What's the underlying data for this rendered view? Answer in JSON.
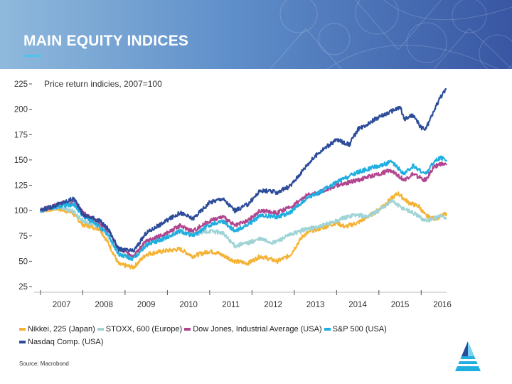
{
  "slide": {
    "title": "MAIN EQUITY INDICES",
    "source": "Source: Macrobond"
  },
  "colors": {
    "header_left": "#8fb9dc",
    "header_right": "#3856a3",
    "accent": "#4fc3e8"
  },
  "icons": {
    "logo": "stylized-triangle-logo-icon"
  },
  "chart_data": {
    "type": "line",
    "subtitle": "Price return indicies, 2007=100",
    "x_ticks": [
      "2007",
      "2008",
      "2009",
      "2010",
      "2011",
      "2012",
      "2013",
      "2014",
      "2015",
      "2016"
    ],
    "y_ticks": [
      25,
      50,
      75,
      100,
      125,
      150,
      175,
      200,
      225
    ],
    "ylim": [
      25,
      225
    ],
    "xlim": [
      2006.85,
      2016.6
    ],
    "grid": false,
    "legend_position": "bottom",
    "series": [
      {
        "name": "Nikkei, 225 (Japan)",
        "color": "#f5b335",
        "x": [
          2007.0,
          2007.4,
          2007.75,
          2008.0,
          2008.4,
          2008.6,
          2008.85,
          2009.2,
          2009.5,
          2009.9,
          2010.3,
          2010.6,
          2011.0,
          2011.2,
          2011.6,
          2011.9,
          2012.2,
          2012.6,
          2012.9,
          2013.2,
          2013.4,
          2013.6,
          2014.0,
          2014.2,
          2014.5,
          2014.9,
          2015.3,
          2015.45,
          2015.7,
          2015.95,
          2016.1,
          2016.3,
          2016.45,
          2016.6
        ],
        "y": [
          100,
          102,
          98,
          86,
          82,
          68,
          47,
          44,
          57,
          60,
          62,
          55,
          60,
          58,
          50,
          48,
          55,
          50,
          56,
          75,
          80,
          82,
          88,
          84,
          88,
          98,
          112,
          117,
          108,
          104,
          95,
          92,
          94,
          97
        ]
      },
      {
        "name": "STOXX, 600 (Europe)",
        "color": "#9fd3d6",
        "x": [
          2007.0,
          2007.4,
          2007.75,
          2008.0,
          2008.4,
          2008.6,
          2008.85,
          2009.2,
          2009.5,
          2009.9,
          2010.3,
          2010.6,
          2011.0,
          2011.3,
          2011.6,
          2011.9,
          2012.2,
          2012.5,
          2012.9,
          2013.3,
          2013.6,
          2014.0,
          2014.4,
          2014.7,
          2015.0,
          2015.3,
          2015.5,
          2015.8,
          2016.1,
          2016.3,
          2016.45,
          2016.6
        ],
        "y": [
          100,
          104,
          100,
          90,
          84,
          74,
          57,
          54,
          68,
          72,
          80,
          76,
          80,
          78,
          65,
          68,
          72,
          68,
          76,
          82,
          84,
          90,
          96,
          94,
          100,
          110,
          104,
          98,
          90,
          92,
          95,
          93
        ]
      },
      {
        "name": "Dow Jones, Industrial Average (USA)",
        "color": "#b2458f",
        "x": [
          2007.0,
          2007.4,
          2007.8,
          2008.0,
          2008.4,
          2008.6,
          2008.85,
          2009.2,
          2009.5,
          2009.9,
          2010.3,
          2010.6,
          2011.0,
          2011.3,
          2011.6,
          2011.9,
          2012.2,
          2012.6,
          2012.9,
          2013.3,
          2013.6,
          2014.0,
          2014.5,
          2014.9,
          2015.3,
          2015.6,
          2015.8,
          2016.1,
          2016.3,
          2016.45,
          2016.6
        ],
        "y": [
          100,
          106,
          109,
          98,
          88,
          80,
          62,
          55,
          70,
          76,
          85,
          80,
          90,
          94,
          85,
          90,
          100,
          98,
          103,
          115,
          118,
          125,
          130,
          135,
          140,
          130,
          136,
          130,
          143,
          146,
          145
        ]
      },
      {
        "name": "S&P 500 (USA)",
        "color": "#1faee0",
        "x": [
          2007.0,
          2007.4,
          2007.8,
          2008.0,
          2008.4,
          2008.6,
          2008.85,
          2009.2,
          2009.5,
          2009.9,
          2010.3,
          2010.6,
          2011.0,
          2011.3,
          2011.6,
          2011.9,
          2012.2,
          2012.6,
          2012.9,
          2013.3,
          2013.6,
          2014.0,
          2014.5,
          2014.9,
          2015.3,
          2015.6,
          2015.8,
          2016.1,
          2016.3,
          2016.45,
          2016.6
        ],
        "y": [
          100,
          104,
          106,
          95,
          84,
          76,
          57,
          52,
          66,
          72,
          80,
          75,
          86,
          90,
          80,
          86,
          95,
          94,
          98,
          112,
          118,
          128,
          138,
          143,
          148,
          136,
          144,
          136,
          148,
          152,
          150
        ]
      },
      {
        "name": "Nasdaq Comp. (USA)",
        "color": "#2c4c9a",
        "x": [
          2007.0,
          2007.4,
          2007.8,
          2008.0,
          2008.4,
          2008.6,
          2008.85,
          2009.2,
          2009.5,
          2009.9,
          2010.3,
          2010.6,
          2011.0,
          2011.3,
          2011.6,
          2011.9,
          2012.2,
          2012.6,
          2012.9,
          2013.3,
          2013.6,
          2014.0,
          2014.3,
          2014.5,
          2014.9,
          2015.3,
          2015.5,
          2015.6,
          2015.8,
          2016.0,
          2016.1,
          2016.3,
          2016.45,
          2016.6
        ],
        "y": [
          100,
          106,
          112,
          96,
          90,
          82,
          62,
          60,
          78,
          88,
          98,
          92,
          108,
          112,
          100,
          106,
          120,
          118,
          124,
          145,
          158,
          170,
          165,
          180,
          190,
          198,
          202,
          190,
          194,
          182,
          180,
          198,
          212,
          220
        ]
      }
    ]
  }
}
